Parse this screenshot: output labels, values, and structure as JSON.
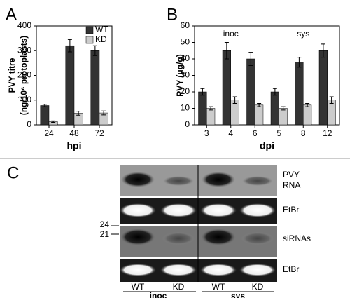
{
  "chart_data": [
    {
      "type": "bar",
      "panel": "A",
      "ylabel": [
        "PVY titre",
        "(ng/10⁶ protoplasts)"
      ],
      "xlabel": "hpi",
      "categories": [
        "24",
        "48",
        "72"
      ],
      "series": [
        {
          "name": "WT",
          "color": "#333333",
          "values": [
            78,
            320,
            300
          ],
          "errors": [
            5,
            25,
            20
          ]
        },
        {
          "name": "KD",
          "color": "#cccccc",
          "values": [
            13,
            47,
            48
          ],
          "errors": [
            3,
            8,
            8
          ]
        }
      ],
      "ylim": [
        0,
        400
      ],
      "yticks": [
        0,
        100,
        200,
        300,
        400
      ],
      "legend": "upper right"
    },
    {
      "type": "bar",
      "panel": "B",
      "ylabel": [
        "PVY (μg/g)"
      ],
      "xlabel": "dpi",
      "categories": [
        "3",
        "4",
        "6",
        "5",
        "8",
        "12"
      ],
      "group_labels": [
        "inoc",
        "sys"
      ],
      "series": [
        {
          "name": "WT",
          "color": "#333333",
          "values": [
            20,
            45,
            40,
            20,
            38,
            45
          ],
          "errors": [
            2,
            5,
            4,
            2,
            3,
            4
          ]
        },
        {
          "name": "KD",
          "color": "#cccccc",
          "values": [
            10,
            15,
            12,
            10,
            12,
            15
          ],
          "errors": [
            1,
            2,
            1,
            1,
            1,
            2
          ]
        }
      ],
      "ylim": [
        0,
        60
      ],
      "yticks": [
        0,
        10,
        20,
        30,
        40,
        50,
        60
      ]
    }
  ],
  "gel": {
    "panel": "C",
    "row_labels": [
      [
        "PVY",
        "RNA"
      ],
      [
        "EtBr"
      ],
      [
        "siRNAs"
      ],
      [
        "EtBr"
      ]
    ],
    "size_markers": [
      "24",
      "21"
    ],
    "lanes": [
      "WT",
      "KD",
      "WT",
      "KD"
    ],
    "groups": [
      "inoc",
      "sys"
    ]
  }
}
